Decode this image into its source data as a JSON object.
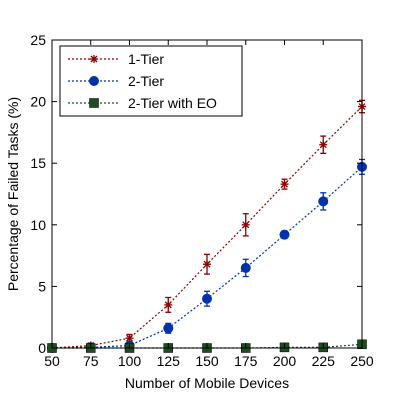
{
  "chart_data": {
    "type": "line",
    "title": "",
    "xlabel": "Number of Mobile Devices",
    "ylabel": "Percentage of Failed Tasks (%)",
    "x": [
      50,
      75,
      100,
      125,
      150,
      175,
      200,
      225,
      250
    ],
    "xlim": [
      50,
      250
    ],
    "ylim": [
      0,
      25
    ],
    "xticks": [
      50,
      75,
      100,
      125,
      150,
      175,
      200,
      225,
      250
    ],
    "yticks": [
      0,
      5,
      10,
      15,
      20,
      25
    ],
    "grid": false,
    "legend_position": "top-left",
    "series": [
      {
        "name": "1-Tier",
        "color": "#8b0000",
        "marker": "star",
        "line_style": "dotted",
        "values": [
          0.0,
          0.2,
          0.8,
          3.5,
          6.8,
          10.0,
          13.3,
          16.5,
          19.6
        ],
        "errors": [
          0.1,
          0.2,
          0.3,
          0.6,
          0.8,
          0.9,
          0.4,
          0.7,
          0.5
        ]
      },
      {
        "name": "2-Tier",
        "color": "#0033aa",
        "marker": "circle",
        "line_style": "dotted",
        "values": [
          0.0,
          0.05,
          0.2,
          1.6,
          4.0,
          6.5,
          9.2,
          11.9,
          14.7
        ],
        "errors": [
          0.05,
          0.1,
          0.2,
          0.4,
          0.6,
          0.7,
          0.3,
          0.7,
          0.6
        ]
      },
      {
        "name": "2-Tier with EO",
        "color": "#1f4d1f",
        "marker": "square",
        "line_style": "dotted",
        "values": [
          0.0,
          0.0,
          0.0,
          0.0,
          0.0,
          0.0,
          0.05,
          0.05,
          0.3
        ],
        "errors": [
          0,
          0,
          0,
          0,
          0,
          0,
          0,
          0,
          0.1
        ]
      }
    ]
  }
}
